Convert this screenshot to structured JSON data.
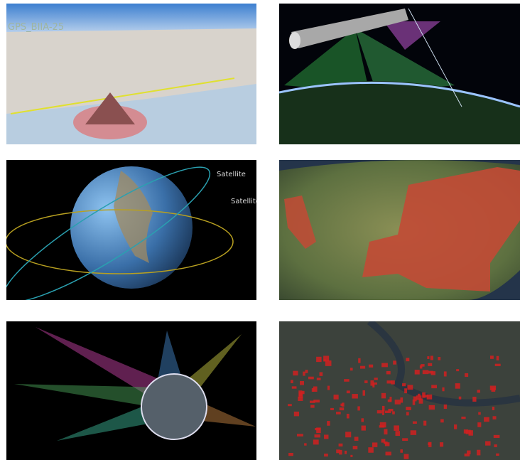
{
  "panel_1": {
    "labels": [
      "GPS_BIIA-25"
    ]
  },
  "panel_3": {
    "labels": [
      "Satellite",
      "Satellite"
    ]
  }
}
